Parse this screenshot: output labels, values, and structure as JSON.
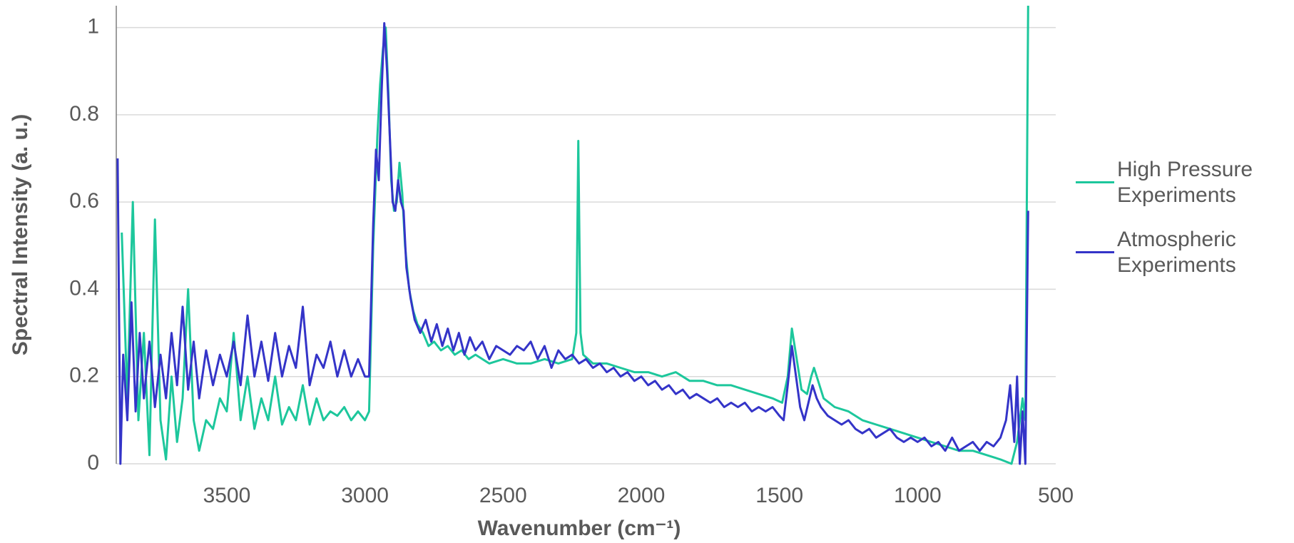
{
  "chart_data": {
    "type": "line",
    "xlabel": "Wavenumber (cm⁻¹)",
    "ylabel": "Spectral Intensity (a. u.)",
    "xlim": [
      3900,
      500
    ],
    "xticks": [
      3500,
      3000,
      2500,
      2000,
      1500,
      1000,
      500
    ],
    "ylim": [
      0,
      1.05
    ],
    "yticks": [
      0,
      0.2,
      0.4,
      0.6,
      0.8,
      1
    ],
    "grid": true,
    "legend": "right",
    "series": [
      {
        "name": "High Pressure Experiments",
        "color": "#1dc79c",
        "x": [
          3880,
          3860,
          3840,
          3820,
          3800,
          3780,
          3760,
          3740,
          3720,
          3700,
          3680,
          3660,
          3640,
          3620,
          3600,
          3575,
          3550,
          3525,
          3500,
          3475,
          3450,
          3425,
          3400,
          3375,
          3350,
          3325,
          3300,
          3275,
          3250,
          3225,
          3200,
          3175,
          3150,
          3125,
          3100,
          3075,
          3050,
          3025,
          3000,
          2985,
          2970,
          2955,
          2945,
          2935,
          2925,
          2915,
          2905,
          2895,
          2885,
          2875,
          2865,
          2855,
          2840,
          2825,
          2810,
          2790,
          2770,
          2750,
          2725,
          2700,
          2675,
          2650,
          2625,
          2600,
          2575,
          2550,
          2500,
          2450,
          2400,
          2350,
          2300,
          2250,
          2235,
          2228,
          2220,
          2210,
          2175,
          2125,
          2075,
          2025,
          1975,
          1925,
          1875,
          1825,
          1775,
          1725,
          1675,
          1625,
          1575,
          1525,
          1490,
          1470,
          1455,
          1440,
          1420,
          1400,
          1385,
          1375,
          1360,
          1340,
          1300,
          1250,
          1200,
          1150,
          1100,
          1050,
          1000,
          950,
          900,
          850,
          800,
          750,
          700,
          660,
          640,
          620,
          610,
          600
        ],
        "values": [
          0.53,
          0.15,
          0.6,
          0.1,
          0.3,
          0.02,
          0.56,
          0.1,
          0.01,
          0.2,
          0.05,
          0.15,
          0.4,
          0.1,
          0.03,
          0.1,
          0.08,
          0.15,
          0.12,
          0.3,
          0.1,
          0.2,
          0.08,
          0.15,
          0.1,
          0.2,
          0.09,
          0.13,
          0.1,
          0.18,
          0.09,
          0.15,
          0.1,
          0.12,
          0.11,
          0.13,
          0.1,
          0.12,
          0.1,
          0.12,
          0.5,
          0.75,
          0.87,
          0.95,
          1.0,
          0.85,
          0.65,
          0.58,
          0.6,
          0.69,
          0.62,
          0.5,
          0.4,
          0.35,
          0.32,
          0.3,
          0.27,
          0.28,
          0.26,
          0.27,
          0.25,
          0.26,
          0.24,
          0.25,
          0.24,
          0.23,
          0.24,
          0.23,
          0.23,
          0.24,
          0.23,
          0.24,
          0.3,
          0.74,
          0.3,
          0.25,
          0.23,
          0.23,
          0.22,
          0.21,
          0.21,
          0.2,
          0.21,
          0.19,
          0.19,
          0.18,
          0.18,
          0.17,
          0.16,
          0.15,
          0.14,
          0.2,
          0.31,
          0.25,
          0.17,
          0.16,
          0.2,
          0.22,
          0.19,
          0.15,
          0.13,
          0.12,
          0.1,
          0.09,
          0.08,
          0.07,
          0.06,
          0.05,
          0.04,
          0.03,
          0.03,
          0.02,
          0.01,
          0.0,
          0.05,
          0.15,
          0.1,
          1.05
        ]
      },
      {
        "name": "Atmospheric Experiments",
        "color": "#3434c8",
        "x": [
          3895,
          3885,
          3875,
          3860,
          3845,
          3830,
          3815,
          3800,
          3780,
          3760,
          3740,
          3720,
          3700,
          3680,
          3660,
          3640,
          3620,
          3600,
          3575,
          3550,
          3525,
          3500,
          3475,
          3450,
          3425,
          3400,
          3375,
          3350,
          3325,
          3300,
          3275,
          3250,
          3225,
          3200,
          3175,
          3150,
          3125,
          3100,
          3075,
          3050,
          3025,
          3000,
          2985,
          2970,
          2960,
          2950,
          2940,
          2930,
          2920,
          2910,
          2900,
          2890,
          2880,
          2870,
          2860,
          2850,
          2835,
          2820,
          2800,
          2780,
          2760,
          2740,
          2720,
          2700,
          2680,
          2660,
          2640,
          2620,
          2600,
          2575,
          2550,
          2525,
          2500,
          2475,
          2450,
          2425,
          2400,
          2375,
          2350,
          2325,
          2300,
          2275,
          2250,
          2225,
          2200,
          2175,
          2150,
          2125,
          2100,
          2075,
          2050,
          2025,
          2000,
          1975,
          1950,
          1925,
          1900,
          1875,
          1850,
          1825,
          1800,
          1775,
          1750,
          1725,
          1700,
          1675,
          1650,
          1625,
          1600,
          1575,
          1550,
          1525,
          1500,
          1485,
          1470,
          1455,
          1440,
          1425,
          1410,
          1395,
          1380,
          1365,
          1350,
          1325,
          1300,
          1275,
          1250,
          1225,
          1200,
          1175,
          1150,
          1125,
          1100,
          1075,
          1050,
          1025,
          1000,
          975,
          950,
          925,
          900,
          875,
          850,
          825,
          800,
          775,
          750,
          725,
          700,
          680,
          665,
          650,
          640,
          630,
          620,
          610,
          600
        ],
        "values": [
          0.7,
          0.0,
          0.25,
          0.1,
          0.37,
          0.12,
          0.3,
          0.15,
          0.28,
          0.13,
          0.25,
          0.15,
          0.3,
          0.18,
          0.36,
          0.17,
          0.28,
          0.15,
          0.26,
          0.18,
          0.25,
          0.2,
          0.28,
          0.18,
          0.34,
          0.2,
          0.28,
          0.19,
          0.3,
          0.2,
          0.27,
          0.22,
          0.36,
          0.18,
          0.25,
          0.22,
          0.28,
          0.2,
          0.26,
          0.2,
          0.24,
          0.2,
          0.2,
          0.55,
          0.72,
          0.65,
          0.85,
          1.01,
          0.9,
          0.75,
          0.6,
          0.58,
          0.65,
          0.6,
          0.58,
          0.45,
          0.38,
          0.33,
          0.3,
          0.33,
          0.28,
          0.32,
          0.27,
          0.31,
          0.26,
          0.3,
          0.25,
          0.29,
          0.26,
          0.28,
          0.24,
          0.27,
          0.26,
          0.25,
          0.27,
          0.26,
          0.28,
          0.24,
          0.27,
          0.22,
          0.26,
          0.24,
          0.25,
          0.23,
          0.24,
          0.22,
          0.23,
          0.21,
          0.22,
          0.2,
          0.21,
          0.19,
          0.2,
          0.18,
          0.19,
          0.17,
          0.18,
          0.16,
          0.17,
          0.15,
          0.16,
          0.15,
          0.14,
          0.15,
          0.13,
          0.14,
          0.13,
          0.14,
          0.12,
          0.13,
          0.12,
          0.13,
          0.11,
          0.1,
          0.18,
          0.27,
          0.2,
          0.13,
          0.1,
          0.14,
          0.18,
          0.15,
          0.13,
          0.11,
          0.1,
          0.09,
          0.1,
          0.08,
          0.07,
          0.08,
          0.06,
          0.07,
          0.08,
          0.06,
          0.05,
          0.06,
          0.05,
          0.06,
          0.04,
          0.05,
          0.03,
          0.06,
          0.03,
          0.04,
          0.05,
          0.03,
          0.05,
          0.04,
          0.06,
          0.1,
          0.18,
          0.05,
          0.2,
          0.0,
          0.12,
          0.0,
          0.58
        ]
      }
    ]
  }
}
